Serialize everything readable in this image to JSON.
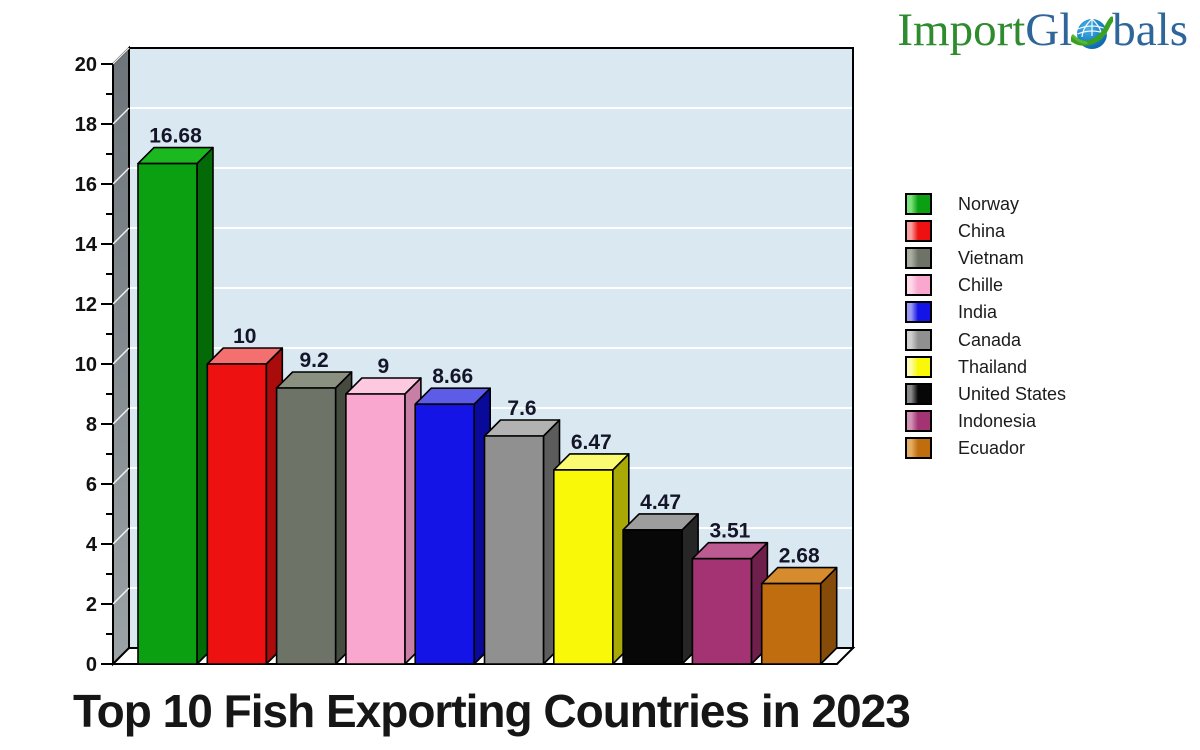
{
  "logo": {
    "part1": "Import ",
    "part2": "Gl",
    "part3": "bals",
    "green": "#2e8b2e",
    "blue": "#2f6699",
    "globe_icon": "globe-icon"
  },
  "title": "Top 10 Fish Exporting Countries in 2023",
  "chart_data": {
    "type": "bar",
    "style": "3d-column",
    "title": "Top 10 Fish Exporting Countries in 2023",
    "xlabel": "",
    "ylabel": "",
    "ylim": [
      0,
      20
    ],
    "y_major_tick_step": 2,
    "y_minor_tick_step": 1,
    "grid": true,
    "plot_bg": "#d9e8f1",
    "wall_color_top": "#6e757a",
    "wall_color_bottom": "#9ca3a7",
    "floor_color": "#ffffff",
    "gridline_color": "#ffffff",
    "value_label_color": "#15152a",
    "axis_label_color": "#111111",
    "legend_position": "right",
    "categories": [
      "Norway",
      "China",
      "Vietnam",
      "Chille",
      "India",
      "Canada",
      "Thailand",
      "United States",
      "Indonesia",
      "Ecuador"
    ],
    "values": [
      16.68,
      10,
      9.2,
      9,
      8.66,
      7.6,
      6.47,
      4.47,
      3.51,
      2.68
    ],
    "bars": [
      {
        "label": "Norway",
        "value": 16.68,
        "display": "16.68",
        "front": "#0aa011",
        "top": "#1cb81f",
        "side": "#046a08",
        "light": "#7be37b"
      },
      {
        "label": "China",
        "value": 10,
        "display": "10",
        "front": "#ee1111",
        "top": "#f47070",
        "side": "#aa0b0b",
        "light": "#f8a0a0"
      },
      {
        "label": "Vietnam",
        "value": 9.2,
        "display": "9.2",
        "front": "#6d7366",
        "top": "#8a9181",
        "side": "#454b3f",
        "light": "#a8aea0"
      },
      {
        "label": "Chille",
        "value": 9,
        "display": "9",
        "front": "#f9a7ce",
        "top": "#fcc9e1",
        "side": "#c87fa6",
        "light": "#fdd9ea"
      },
      {
        "label": "India",
        "value": 8.66,
        "display": "8.66",
        "front": "#1414e6",
        "top": "#5c5ce8",
        "side": "#0a0a9a",
        "light": "#9a9af2"
      },
      {
        "label": "Canada",
        "value": 7.6,
        "display": "7.6",
        "front": "#909090",
        "top": "#b2b2b2",
        "side": "#5c5c5c",
        "light": "#cfcfcf"
      },
      {
        "label": "Thailand",
        "value": 6.47,
        "display": "6.47",
        "front": "#f8f808",
        "top": "#fbfb72",
        "side": "#a9a906",
        "light": "#fcfcaa"
      },
      {
        "label": "United States",
        "value": 4.47,
        "display": "4.47",
        "front": "#070707",
        "top": "#9d9d9d",
        "side": "#262626",
        "light": "#8a8a8a"
      },
      {
        "label": "Indonesia",
        "value": 3.51,
        "display": "3.51",
        "front": "#a33372",
        "top": "#bc5a92",
        "side": "#6e1f4c",
        "light": "#d093b6"
      },
      {
        "label": "Ecuador",
        "value": 2.68,
        "display": "2.68",
        "front": "#c06d10",
        "top": "#d68c2e",
        "side": "#854b09",
        "light": "#e3ae63"
      }
    ]
  }
}
